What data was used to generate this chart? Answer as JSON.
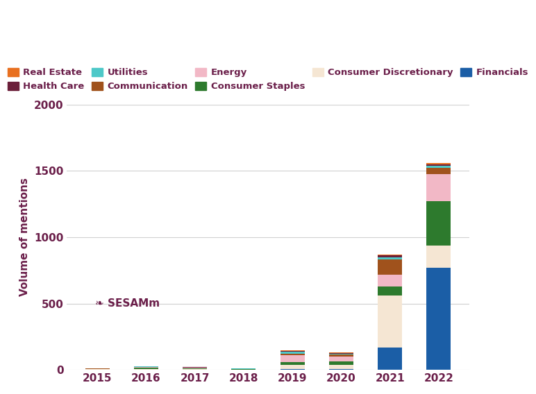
{
  "years": [
    "2015",
    "2016",
    "2017",
    "2018",
    "2019",
    "2020",
    "2021",
    "2022"
  ],
  "sectors": [
    "Financials",
    "Consumer Discretionary",
    "Consumer Staples",
    "Energy",
    "Communication",
    "Utilities",
    "Health Care",
    "Real Estate"
  ],
  "colors": {
    "Financials": "#1B5EA6",
    "Consumer Discretionary": "#F5E6D3",
    "Consumer Staples": "#2D7A2D",
    "Energy": "#F2B8C6",
    "Communication": "#A0521C",
    "Utilities": "#4DC8C8",
    "Health Care": "#6B1F3A",
    "Real Estate": "#E87020"
  },
  "data": {
    "Financials": [
      2,
      3,
      3,
      1,
      8,
      8,
      170,
      770
    ],
    "Consumer Discretionary": [
      2,
      5,
      3,
      2,
      30,
      30,
      390,
      165
    ],
    "Consumer Staples": [
      2,
      7,
      4,
      2,
      18,
      25,
      70,
      335
    ],
    "Energy": [
      2,
      5,
      4,
      2,
      55,
      35,
      90,
      205
    ],
    "Communication": [
      1,
      3,
      3,
      1,
      12,
      18,
      115,
      50
    ],
    "Utilities": [
      1,
      2,
      2,
      1,
      15,
      5,
      15,
      15
    ],
    "Health Care": [
      1,
      2,
      2,
      1,
      5,
      5,
      15,
      12
    ],
    "Real Estate": [
      1,
      2,
      1,
      1,
      3,
      3,
      5,
      10
    ]
  },
  "ylim": [
    0,
    2000
  ],
  "yticks": [
    0,
    500,
    1000,
    1500,
    2000
  ],
  "ylabel": "Volume of mentions",
  "background_color": "#FFFFFF",
  "grid_color": "#D0D0D0",
  "tick_color": "#6B1F4A",
  "legend_row1": [
    "Real Estate",
    "Health Care",
    "Utilities",
    "Communication",
    "Energy"
  ],
  "legend_row2": [
    "Consumer Staples",
    "Consumer Discretionary",
    "Financials"
  ],
  "sesamm_text": "SESAMm"
}
